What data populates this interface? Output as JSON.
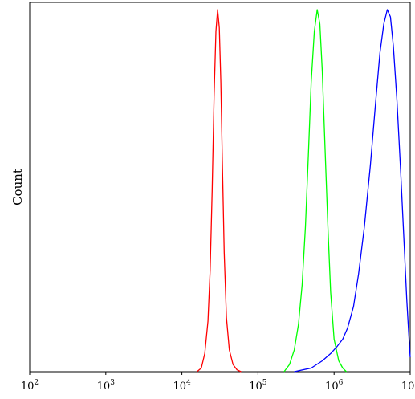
{
  "chart_data": {
    "type": "line",
    "title": "",
    "xlabel": "",
    "ylabel": "Count",
    "x_scale": "log",
    "xlim": [
      100,
      10000000
    ],
    "ylim": [
      0,
      1
    ],
    "x_ticks": [
      {
        "value": 100,
        "base": "10",
        "exp": "2"
      },
      {
        "value": 1000,
        "base": "10",
        "exp": "3"
      },
      {
        "value": 10000,
        "base": "10",
        "exp": "4"
      },
      {
        "value": 100000,
        "base": "10",
        "exp": "5"
      },
      {
        "value": 1000000,
        "base": "10",
        "exp": "6"
      },
      {
        "value": 10000000,
        "base": "10",
        "exp": "7"
      }
    ],
    "grid": false,
    "legend": "none",
    "series": [
      {
        "color": "#ff0000",
        "x": [
          15800,
          18000,
          20000,
          22000,
          23500,
          25000,
          26500,
          28000,
          29500,
          31000,
          32500,
          34000,
          36000,
          38500,
          42000,
          47000,
          53000,
          60000
        ],
        "y": [
          0.0,
          0.01,
          0.05,
          0.14,
          0.28,
          0.5,
          0.76,
          0.94,
          1.0,
          0.95,
          0.8,
          0.58,
          0.33,
          0.15,
          0.06,
          0.02,
          0.005,
          0.0
        ]
      },
      {
        "color": "#00ff00",
        "x": [
          220000,
          260000,
          300000,
          340000,
          380000,
          420000,
          460000,
          500000,
          550000,
          600000,
          650000,
          700000,
          760000,
          830000,
          900000,
          1000000,
          1150000,
          1300000,
          1450000
        ],
        "y": [
          0.0,
          0.02,
          0.06,
          0.13,
          0.24,
          0.4,
          0.6,
          0.8,
          0.94,
          1.0,
          0.96,
          0.83,
          0.62,
          0.4,
          0.22,
          0.09,
          0.03,
          0.01,
          0.0
        ]
      },
      {
        "color": "#0000ff",
        "x": [
          300000,
          500000,
          700000,
          900000,
          1100000,
          1300000,
          1500000,
          1800000,
          2100000,
          2500000,
          3000000,
          3500000,
          4000000,
          4500000,
          5000000,
          5500000,
          6000000,
          6700000,
          7500000,
          8300000,
          9000000,
          9600000,
          10000000
        ],
        "y": [
          0.0,
          0.01,
          0.03,
          0.05,
          0.07,
          0.09,
          0.12,
          0.18,
          0.27,
          0.4,
          0.57,
          0.74,
          0.88,
          0.96,
          1.0,
          0.98,
          0.9,
          0.75,
          0.55,
          0.36,
          0.2,
          0.1,
          0.04
        ]
      }
    ]
  }
}
